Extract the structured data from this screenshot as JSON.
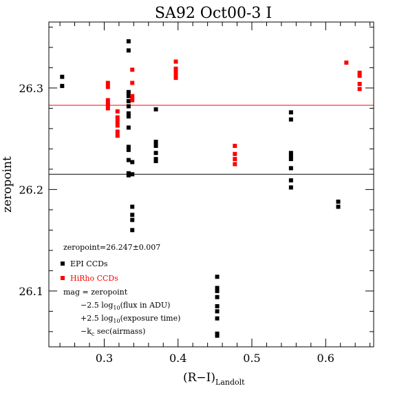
{
  "chart_data": {
    "type": "scatter",
    "title": "SA92 Oct00-3 I",
    "xlabel": "(R−I)",
    "xlabel_sub": "Landolt",
    "ylabel": "zeropoint",
    "xlim": [
      0.225,
      0.665
    ],
    "ylim": [
      26.045,
      26.365
    ],
    "x_ticks": [
      0.3,
      0.4,
      0.5,
      0.6
    ],
    "x_tick_labels": [
      "0.3",
      "0.4",
      "0.5",
      "0.6"
    ],
    "y_ticks": [
      26.1,
      26.2,
      26.3
    ],
    "y_tick_labels": [
      "26.1",
      "26.2",
      "26.3"
    ],
    "x_minor_step": 0.02,
    "y_minor_step": 0.02,
    "grid": false,
    "hlines": [
      {
        "series": "EPI CCDs",
        "y": 26.215
      },
      {
        "series": "HiRho CCDs",
        "y": 26.283
      }
    ],
    "series": [
      {
        "name": "EPI CCDs",
        "color": "#000000",
        "points": [
          [
            0.243,
            26.311
          ],
          [
            0.243,
            26.302
          ],
          [
            0.333,
            26.346
          ],
          [
            0.333,
            26.337
          ],
          [
            0.333,
            26.296
          ],
          [
            0.333,
            26.292
          ],
          [
            0.333,
            26.287
          ],
          [
            0.333,
            26.282
          ],
          [
            0.333,
            26.275
          ],
          [
            0.333,
            26.272
          ],
          [
            0.333,
            26.261
          ],
          [
            0.333,
            26.242
          ],
          [
            0.333,
            26.239
          ],
          [
            0.333,
            26.229
          ],
          [
            0.333,
            26.216
          ],
          [
            0.333,
            26.214
          ],
          [
            0.338,
            26.227
          ],
          [
            0.338,
            26.215
          ],
          [
            0.338,
            26.183
          ],
          [
            0.338,
            26.175
          ],
          [
            0.338,
            26.17
          ],
          [
            0.338,
            26.16
          ],
          [
            0.37,
            26.279
          ],
          [
            0.37,
            26.247
          ],
          [
            0.37,
            26.243
          ],
          [
            0.37,
            26.236
          ],
          [
            0.37,
            26.23
          ],
          [
            0.37,
            26.228
          ],
          [
            0.453,
            26.114
          ],
          [
            0.453,
            26.103
          ],
          [
            0.453,
            26.1
          ],
          [
            0.453,
            26.094
          ],
          [
            0.453,
            26.085
          ],
          [
            0.453,
            26.08
          ],
          [
            0.453,
            26.073
          ],
          [
            0.453,
            26.058
          ],
          [
            0.453,
            26.056
          ],
          [
            0.553,
            26.276
          ],
          [
            0.553,
            26.269
          ],
          [
            0.553,
            26.236
          ],
          [
            0.553,
            26.233
          ],
          [
            0.553,
            26.23
          ],
          [
            0.553,
            26.221
          ],
          [
            0.553,
            26.209
          ],
          [
            0.553,
            26.202
          ],
          [
            0.617,
            26.188
          ],
          [
            0.617,
            26.183
          ]
        ]
      },
      {
        "name": "HiRho CCDs",
        "color": "#ff0000",
        "points": [
          [
            0.305,
            26.305
          ],
          [
            0.305,
            26.301
          ],
          [
            0.305,
            26.288
          ],
          [
            0.305,
            26.284
          ],
          [
            0.305,
            26.28
          ],
          [
            0.318,
            26.277
          ],
          [
            0.318,
            26.271
          ],
          [
            0.318,
            26.267
          ],
          [
            0.318,
            26.263
          ],
          [
            0.318,
            26.257
          ],
          [
            0.318,
            26.253
          ],
          [
            0.338,
            26.318
          ],
          [
            0.338,
            26.305
          ],
          [
            0.338,
            26.292
          ],
          [
            0.338,
            26.288
          ],
          [
            0.397,
            26.326
          ],
          [
            0.397,
            26.319
          ],
          [
            0.397,
            26.316
          ],
          [
            0.397,
            26.313
          ],
          [
            0.397,
            26.31
          ],
          [
            0.477,
            26.243
          ],
          [
            0.477,
            26.235
          ],
          [
            0.477,
            26.23
          ],
          [
            0.477,
            26.225
          ],
          [
            0.628,
            26.325
          ],
          [
            0.646,
            26.315
          ],
          [
            0.646,
            26.312
          ],
          [
            0.646,
            26.304
          ],
          [
            0.646,
            26.299
          ]
        ]
      }
    ],
    "annotations": {
      "fit": "zeropoint=26.247±0.007",
      "legend_epi": "EPI CCDs",
      "legend_hirho": "HiRho CCDs",
      "eq1": "mag = zeropoint",
      "eq2_pre": "−2.5 log",
      "eq2_sub": "10",
      "eq2_post": "(flux in ADU)",
      "eq3_pre": "+2.5 log",
      "eq3_sub": "10",
      "eq3_post": "(exposure time)",
      "eq4_pre": "−k",
      "eq4_sub": "c",
      "eq4_post": " sec(airmass)"
    }
  }
}
